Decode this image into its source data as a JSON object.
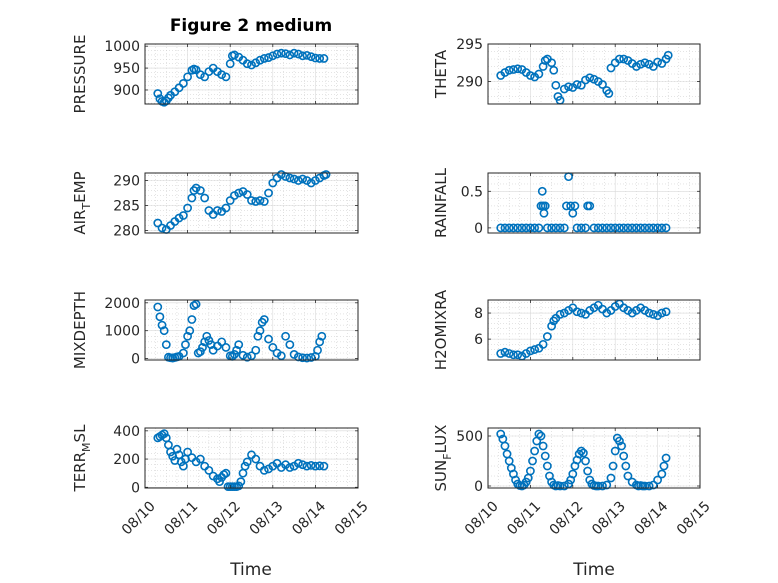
{
  "figure": {
    "title": "Figure 2 medium",
    "xlabel": "Time",
    "marker_color": "#0072BD",
    "x_ticks": [
      "08/10",
      "08/11",
      "08/12",
      "08/13",
      "08/14",
      "08/15"
    ]
  },
  "chart_data": [
    {
      "type": "scatter",
      "name": "PRESSURE",
      "ylabel": "PRESSURE",
      "has_title": true,
      "ylim": [
        868,
        1005
      ],
      "yticks": [
        900,
        950,
        1000
      ],
      "yticklabels": [
        "900",
        "950",
        "1000"
      ],
      "x_days": [
        0.3,
        0.35,
        0.4,
        0.45,
        0.5,
        0.55,
        0.6,
        0.7,
        0.8,
        0.9,
        1.0,
        1.1,
        1.15,
        1.2,
        1.3,
        1.4,
        1.5,
        1.6,
        1.7,
        1.8,
        1.9,
        2.0,
        2.05,
        2.1,
        2.2,
        2.3,
        2.4,
        2.5,
        2.6,
        2.7,
        2.8,
        2.9,
        3.0,
        3.1,
        3.2,
        3.3,
        3.4,
        3.5,
        3.6,
        3.7,
        3.8,
        3.9,
        4.0,
        4.1,
        4.2
      ],
      "values": [
        892,
        880,
        874,
        872,
        875,
        882,
        888,
        896,
        905,
        915,
        930,
        945,
        948,
        946,
        935,
        930,
        942,
        950,
        942,
        935,
        930,
        960,
        978,
        980,
        975,
        968,
        960,
        957,
        962,
        968,
        972,
        974,
        978,
        982,
        984,
        983,
        980,
        984,
        982,
        978,
        979,
        976,
        973,
        972,
        972
      ]
    },
    {
      "type": "scatter",
      "name": "THETA",
      "ylabel": "THETA",
      "has_title": false,
      "ylim": [
        287,
        295
      ],
      "yticks": [
        290,
        295
      ],
      "yticklabels": [
        "290",
        "295"
      ],
      "x_days": [
        0.3,
        0.4,
        0.5,
        0.6,
        0.7,
        0.8,
        0.9,
        1.0,
        1.1,
        1.2,
        1.3,
        1.35,
        1.4,
        1.5,
        1.55,
        1.6,
        1.65,
        1.7,
        1.8,
        1.9,
        2.0,
        2.1,
        2.2,
        2.3,
        2.4,
        2.5,
        2.6,
        2.7,
        2.8,
        2.85,
        2.9,
        3.0,
        3.1,
        3.2,
        3.3,
        3.4,
        3.5,
        3.6,
        3.7,
        3.8,
        3.9,
        4.0,
        4.1,
        4.2,
        4.25
      ],
      "values": [
        290.8,
        291.2,
        291.5,
        291.6,
        291.7,
        291.6,
        291.2,
        290.8,
        290.6,
        291.0,
        292.0,
        292.8,
        293.0,
        292.5,
        291.5,
        289.5,
        288.0,
        287.5,
        289.0,
        289.3,
        289.2,
        289.6,
        289.5,
        290.2,
        290.5,
        290.3,
        290.0,
        289.6,
        288.8,
        288.4,
        291.8,
        292.5,
        293.0,
        293.0,
        292.8,
        292.4,
        292.0,
        292.3,
        292.5,
        292.3,
        292.0,
        292.6,
        292.4,
        293.0,
        293.5
      ]
    },
    {
      "type": "scatter",
      "name": "AIR_TEMP",
      "ylabel": "AIR",
      "ylabel_sub": "T",
      "ylabel_after": "EMP",
      "has_title": false,
      "ylim": [
        279.5,
        291.5
      ],
      "yticks": [
        280,
        285,
        290
      ],
      "yticklabels": [
        "280",
        "285",
        "290"
      ],
      "x_days": [
        0.3,
        0.4,
        0.5,
        0.6,
        0.7,
        0.8,
        0.9,
        1.0,
        1.1,
        1.15,
        1.2,
        1.3,
        1.4,
        1.5,
        1.6,
        1.7,
        1.8,
        1.9,
        2.0,
        2.1,
        2.2,
        2.3,
        2.4,
        2.5,
        2.6,
        2.7,
        2.8,
        2.9,
        3.0,
        3.1,
        3.2,
        3.3,
        3.4,
        3.5,
        3.6,
        3.7,
        3.8,
        3.9,
        4.0,
        4.1,
        4.2,
        4.25
      ],
      "values": [
        281.5,
        280.5,
        280.2,
        281.0,
        281.8,
        282.5,
        283.0,
        284.5,
        286.5,
        288.0,
        288.5,
        288.0,
        286.5,
        284.0,
        283.2,
        284.0,
        283.8,
        284.5,
        286.0,
        287.0,
        287.5,
        287.8,
        287.2,
        286.0,
        285.8,
        286.0,
        285.8,
        287.5,
        289.5,
        290.5,
        291.2,
        290.8,
        290.5,
        290.3,
        290.0,
        290.3,
        290.0,
        289.5,
        290.0,
        290.5,
        291.0,
        291.2
      ]
    },
    {
      "type": "scatter",
      "name": "RAINFALL",
      "ylabel": "RAINFALL",
      "has_title": false,
      "ylim": [
        -0.07,
        0.75
      ],
      "yticks": [
        0,
        0.5
      ],
      "yticklabels": [
        "0",
        "0.5"
      ],
      "x_days": [
        0.3,
        0.4,
        0.5,
        0.6,
        0.7,
        0.8,
        0.9,
        1.0,
        1.1,
        1.2,
        1.25,
        1.28,
        1.3,
        1.32,
        1.35,
        1.4,
        1.5,
        1.6,
        1.7,
        1.8,
        1.85,
        1.9,
        1.95,
        2.0,
        2.05,
        2.1,
        2.2,
        2.3,
        2.35,
        2.4,
        2.5,
        2.6,
        2.7,
        2.8,
        2.9,
        3.0,
        3.1,
        3.2,
        3.3,
        3.4,
        3.5,
        3.6,
        3.7,
        3.8,
        3.9,
        4.0,
        4.1,
        4.2
      ],
      "values": [
        0,
        0,
        0,
        0,
        0,
        0,
        0,
        0,
        0,
        0,
        0.3,
        0.5,
        0.3,
        0.2,
        0.3,
        0,
        0,
        0,
        0,
        0,
        0.3,
        0.7,
        0.3,
        0.2,
        0.3,
        0,
        0,
        0,
        0.3,
        0.3,
        0,
        0,
        0,
        0,
        0,
        0,
        0,
        0,
        0,
        0,
        0,
        0,
        0,
        0,
        0,
        0,
        0,
        0
      ]
    },
    {
      "type": "scatter",
      "name": "MIXDEPTH",
      "ylabel": "MIXDEPTH",
      "has_title": false,
      "ylim": [
        -50,
        2100
      ],
      "yticks": [
        0,
        1000,
        2000
      ],
      "yticklabels": [
        "0",
        "1000",
        "2000"
      ],
      "x_days": [
        0.3,
        0.35,
        0.4,
        0.45,
        0.5,
        0.55,
        0.6,
        0.65,
        0.7,
        0.75,
        0.8,
        0.9,
        0.95,
        1.0,
        1.05,
        1.1,
        1.15,
        1.2,
        1.25,
        1.3,
        1.35,
        1.4,
        1.45,
        1.5,
        1.55,
        1.6,
        1.7,
        1.8,
        1.9,
        2.0,
        2.05,
        2.1,
        2.15,
        2.2,
        2.3,
        2.4,
        2.5,
        2.6,
        2.65,
        2.7,
        2.75,
        2.8,
        2.9,
        3.0,
        3.1,
        3.2,
        3.3,
        3.4,
        3.5,
        3.6,
        3.7,
        3.8,
        3.9,
        4.0,
        4.05,
        4.1,
        4.15
      ],
      "values": [
        1850,
        1500,
        1200,
        1000,
        500,
        50,
        30,
        20,
        40,
        60,
        80,
        200,
        500,
        800,
        1000,
        1400,
        1900,
        1950,
        200,
        250,
        400,
        600,
        800,
        650,
        500,
        300,
        450,
        600,
        400,
        100,
        80,
        150,
        300,
        500,
        120,
        50,
        100,
        300,
        800,
        1000,
        1300,
        1400,
        700,
        400,
        200,
        100,
        800,
        500,
        150,
        60,
        30,
        20,
        40,
        80,
        300,
        600,
        800
      ]
    },
    {
      "type": "scatter",
      "name": "H2OMIXRA",
      "ylabel": "H2OMIXRA",
      "has_title": false,
      "ylim": [
        4.4,
        9.0
      ],
      "yticks": [
        6,
        8
      ],
      "yticklabels": [
        "6",
        "8"
      ],
      "x_days": [
        0.3,
        0.4,
        0.5,
        0.6,
        0.7,
        0.8,
        0.9,
        1.0,
        1.1,
        1.2,
        1.3,
        1.4,
        1.5,
        1.55,
        1.6,
        1.7,
        1.8,
        1.9,
        2.0,
        2.1,
        2.2,
        2.3,
        2.4,
        2.5,
        2.6,
        2.7,
        2.8,
        2.9,
        3.0,
        3.1,
        3.2,
        3.3,
        3.4,
        3.5,
        3.6,
        3.7,
        3.8,
        3.9,
        4.0,
        4.1,
        4.2
      ],
      "values": [
        4.9,
        5.0,
        4.9,
        4.8,
        4.8,
        4.7,
        4.9,
        5.1,
        5.2,
        5.3,
        5.6,
        6.2,
        7.0,
        7.4,
        7.6,
        7.9,
        8.0,
        8.2,
        8.4,
        8.1,
        8.0,
        7.9,
        8.2,
        8.4,
        8.6,
        8.3,
        8.0,
        8.2,
        8.5,
        8.7,
        8.4,
        8.2,
        8.0,
        8.2,
        8.4,
        8.2,
        8.0,
        7.9,
        7.8,
        8.0,
        8.1
      ]
    },
    {
      "type": "scatter",
      "name": "TERR_MSL",
      "ylabel": "TERR",
      "ylabel_sub": "M",
      "ylabel_after": "SL",
      "has_title": false,
      "ylim": [
        -5,
        420
      ],
      "yticks": [
        0,
        200,
        400
      ],
      "yticklabels": [
        "0",
        "200",
        "400"
      ],
      "x_days": [
        0.3,
        0.35,
        0.4,
        0.45,
        0.5,
        0.55,
        0.6,
        0.65,
        0.7,
        0.75,
        0.8,
        0.85,
        0.9,
        0.95,
        1.0,
        1.1,
        1.2,
        1.3,
        1.4,
        1.5,
        1.6,
        1.7,
        1.75,
        1.8,
        1.85,
        1.9,
        1.95,
        2.0,
        2.05,
        2.1,
        2.15,
        2.2,
        2.25,
        2.3,
        2.35,
        2.4,
        2.5,
        2.6,
        2.7,
        2.8,
        2.9,
        3.0,
        3.1,
        3.2,
        3.3,
        3.4,
        3.5,
        3.6,
        3.7,
        3.8,
        3.9,
        4.0,
        4.1,
        4.2
      ],
      "values": [
        350,
        360,
        370,
        380,
        350,
        300,
        250,
        220,
        190,
        270,
        230,
        180,
        150,
        200,
        250,
        210,
        180,
        200,
        150,
        120,
        80,
        60,
        40,
        70,
        90,
        100,
        5,
        5,
        5,
        5,
        5,
        10,
        40,
        100,
        150,
        180,
        230,
        200,
        150,
        120,
        130,
        150,
        170,
        140,
        160,
        140,
        150,
        170,
        160,
        150,
        155,
        150,
        152,
        150
      ]
    },
    {
      "type": "scatter",
      "name": "SUN_FLUX",
      "ylabel": "SUN",
      "ylabel_sub": "F",
      "ylabel_after": "LUX",
      "has_title": false,
      "ylim": [
        -20,
        580
      ],
      "yticks": [
        0,
        500
      ],
      "yticklabels": [
        "0",
        "500"
      ],
      "x_days": [
        0.3,
        0.35,
        0.4,
        0.45,
        0.5,
        0.55,
        0.6,
        0.65,
        0.7,
        0.75,
        0.8,
        0.85,
        0.9,
        0.95,
        1.0,
        1.05,
        1.1,
        1.15,
        1.2,
        1.25,
        1.3,
        1.35,
        1.4,
        1.45,
        1.5,
        1.55,
        1.6,
        1.65,
        1.7,
        1.8,
        1.9,
        1.95,
        2.0,
        2.05,
        2.1,
        2.15,
        2.2,
        2.25,
        2.3,
        2.35,
        2.4,
        2.45,
        2.5,
        2.55,
        2.6,
        2.7,
        2.8,
        2.9,
        2.95,
        3.0,
        3.05,
        3.1,
        3.15,
        3.2,
        3.25,
        3.3,
        3.4,
        3.5,
        3.55,
        3.6,
        3.65,
        3.7,
        3.8,
        3.9,
        4.0,
        4.1,
        4.15,
        4.2
      ],
      "values": [
        520,
        470,
        400,
        320,
        250,
        180,
        120,
        60,
        20,
        5,
        0,
        10,
        40,
        80,
        150,
        250,
        350,
        450,
        520,
        500,
        400,
        300,
        200,
        100,
        40,
        10,
        0,
        5,
        0,
        0,
        20,
        60,
        120,
        200,
        260,
        320,
        350,
        330,
        250,
        150,
        60,
        20,
        5,
        0,
        0,
        0,
        10,
        80,
        200,
        350,
        480,
        450,
        400,
        300,
        200,
        100,
        40,
        10,
        0,
        5,
        0,
        0,
        0,
        10,
        60,
        120,
        200,
        280
      ]
    }
  ]
}
